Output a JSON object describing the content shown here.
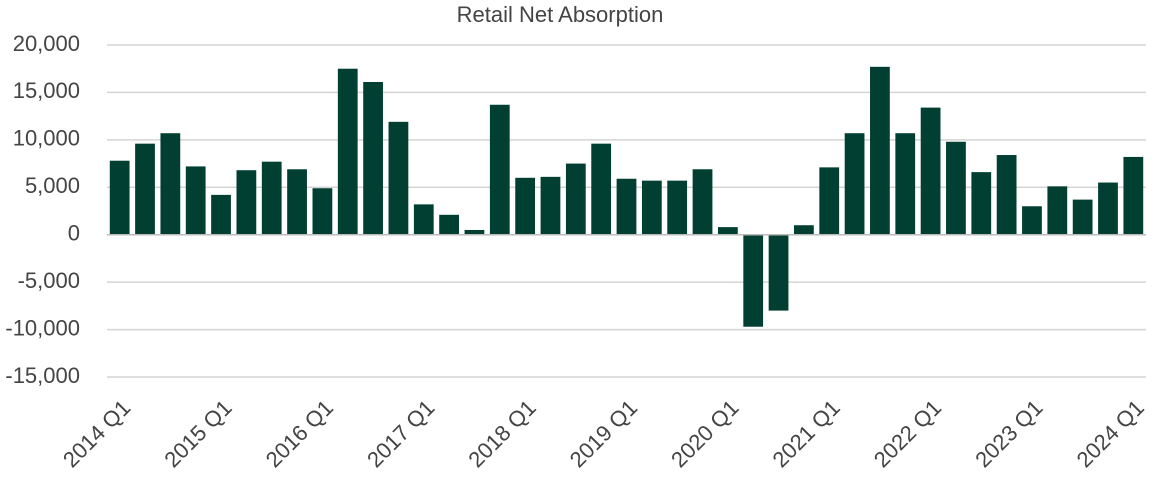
{
  "chart_data": {
    "type": "bar",
    "title": "Retail Net Absorption",
    "categories": [
      "2014 Q1",
      null,
      null,
      null,
      "2015 Q1",
      null,
      null,
      null,
      "2016 Q1",
      null,
      null,
      null,
      "2017 Q1",
      null,
      null,
      null,
      "2018 Q1",
      null,
      null,
      null,
      "2019 Q1",
      null,
      null,
      null,
      "2020 Q1",
      null,
      null,
      null,
      "2021 Q1",
      null,
      null,
      null,
      "2022 Q1",
      null,
      null,
      null,
      "2023 Q1",
      null,
      null,
      null,
      "2024 Q1"
    ],
    "values": [
      7800,
      9600,
      10700,
      7200,
      4200,
      6800,
      7700,
      6900,
      4900,
      17500,
      16100,
      11900,
      3200,
      2100,
      500,
      13700,
      6000,
      6100,
      7500,
      9600,
      5900,
      5700,
      5700,
      6900,
      800,
      -9700,
      -8000,
      1000,
      7100,
      10700,
      17700,
      10700,
      13400,
      9800,
      6600,
      8400,
      3000,
      5100,
      3700,
      5500,
      8200
    ],
    "color": "#003f31",
    "ylim": [
      -15000,
      20000
    ],
    "yticks": [
      {
        "value": -15000,
        "label": "-15,000"
      },
      {
        "value": -10000,
        "label": "-10,000"
      },
      {
        "value": -5000,
        "label": "-5,000"
      },
      0,
      {
        "value": 5000,
        "label": "5,000"
      },
      {
        "value": 10000,
        "label": "10,000"
      },
      {
        "value": 15000,
        "label": "15,000"
      },
      {
        "value": 20000,
        "label": "20,000"
      }
    ],
    "grid": true
  }
}
